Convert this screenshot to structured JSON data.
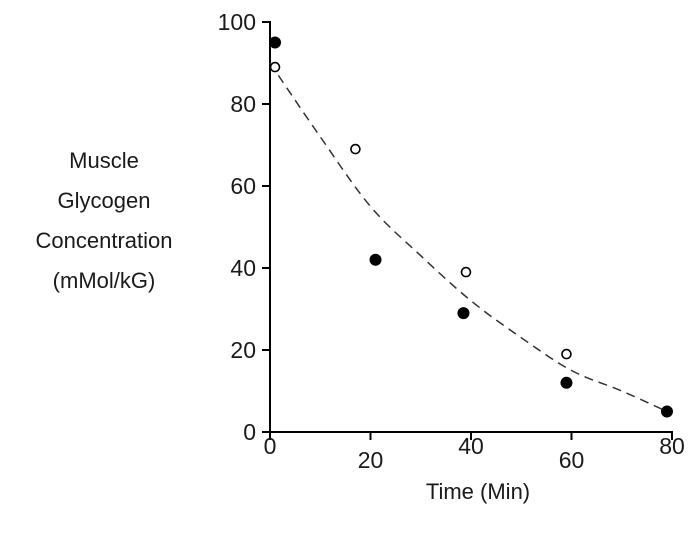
{
  "chart_data": {
    "type": "scatter",
    "xlabel": "Time (Min)",
    "ylabel_lines": [
      "Muscle",
      "Glycogen",
      "Concentration",
      "(mMol/kG)"
    ],
    "xlim": [
      0,
      80
    ],
    "ylim": [
      0,
      100
    ],
    "x_ticks": [
      0,
      20,
      40,
      60,
      80
    ],
    "y_ticks": [
      0,
      20,
      40,
      60,
      80,
      100
    ],
    "grid": false,
    "legend": "none",
    "series": [
      {
        "marker": "filled-circle",
        "color": "#000000",
        "points": [
          {
            "x": 1,
            "y": 95
          },
          {
            "x": 21,
            "y": 42
          },
          {
            "x": 38.5,
            "y": 29
          },
          {
            "x": 59,
            "y": 12
          },
          {
            "x": 79,
            "y": 5
          }
        ]
      },
      {
        "marker": "open-circle",
        "color": "#000000",
        "points": [
          {
            "x": 1,
            "y": 89
          },
          {
            "x": 17,
            "y": 69
          },
          {
            "x": 39,
            "y": 39
          },
          {
            "x": 59,
            "y": 19
          }
        ]
      }
    ],
    "trend_line": {
      "style": "dashed",
      "color": "#333333",
      "points": [
        {
          "x": 0,
          "y": 90
        },
        {
          "x": 10,
          "y": 72
        },
        {
          "x": 20,
          "y": 55
        },
        {
          "x": 30,
          "y": 43
        },
        {
          "x": 40,
          "y": 32
        },
        {
          "x": 50,
          "y": 23
        },
        {
          "x": 60,
          "y": 15
        },
        {
          "x": 70,
          "y": 10
        },
        {
          "x": 79,
          "y": 5
        }
      ]
    }
  }
}
